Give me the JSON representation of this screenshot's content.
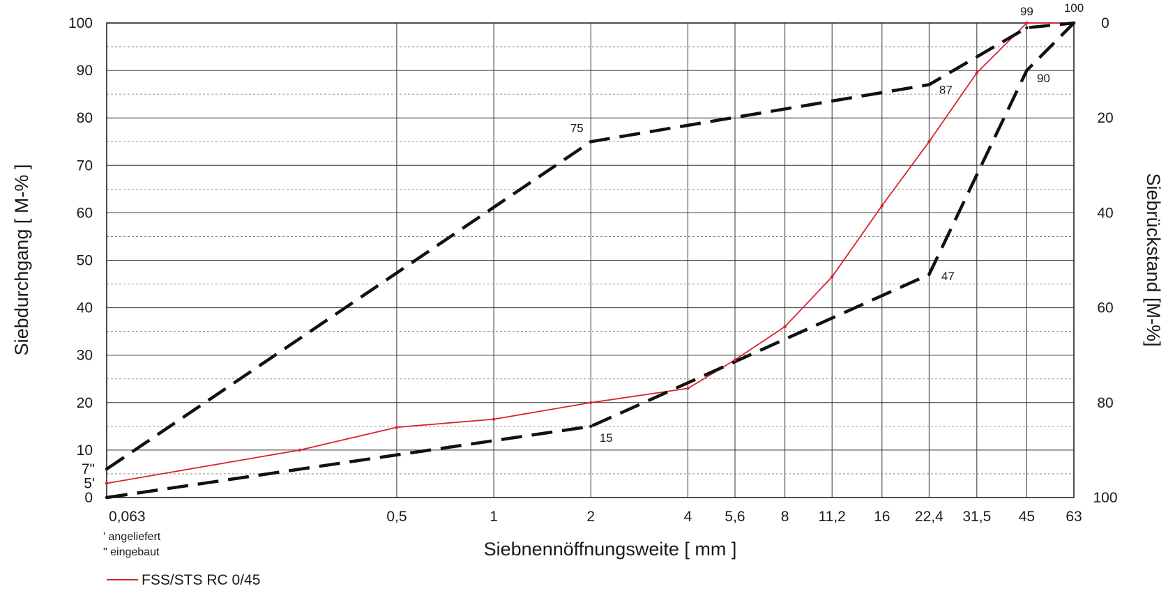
{
  "chart_data": {
    "type": "line",
    "ylabel": "Siebdurchgang [ M-% ]",
    "y2label": "Siebrückstand [M-%]",
    "xlabel": "Siebnennöffnungsweite [ mm ]",
    "x_scale": "log",
    "x_ticks": [
      "0,063",
      "0,5",
      "1",
      "2",
      "4",
      "5,6",
      "8",
      "11,2",
      "16",
      "22,4",
      "31,5",
      "45",
      "63"
    ],
    "y_ticks": [
      "0",
      "10",
      "20",
      "30",
      "40",
      "50",
      "60",
      "70",
      "80",
      "90",
      "100"
    ],
    "y2_ticks": [
      "0",
      "20",
      "40",
      "60",
      "80",
      "100"
    ],
    "ylim": [
      0,
      100
    ],
    "y2lim": [
      100,
      0
    ],
    "grid": true,
    "extra_y_labels": [
      {
        "text": "7\"",
        "y": 6
      },
      {
        "text": "5'",
        "y": 3
      }
    ],
    "notes": [
      "' angeliefert",
      "\" eingebaut"
    ],
    "series": [
      {
        "name": "FSS/STS RC 0/45",
        "color": "#d9232e",
        "style": "solid",
        "legend": true,
        "x": [
          0.063,
          0.25,
          0.5,
          1,
          2,
          4,
          5.6,
          8,
          11.2,
          16,
          22.4,
          31.5,
          45,
          63
        ],
        "y": [
          3,
          10,
          14.8,
          16.5,
          20,
          23,
          29,
          36,
          46.5,
          61.5,
          75,
          89.5,
          100,
          100
        ]
      },
      {
        "name": "",
        "color": "#111111",
        "style": "dashed",
        "legend": false,
        "x": [
          0.063,
          2,
          22.4,
          45,
          63
        ],
        "y": [
          6,
          75,
          87,
          99,
          100
        ]
      },
      {
        "name": "",
        "color": "#111111",
        "style": "dashed",
        "legend": false,
        "x": [
          0.063,
          2,
          22.4,
          45,
          63
        ],
        "y": [
          0,
          15,
          47,
          90,
          100
        ]
      }
    ],
    "annotations": [
      {
        "text": "75",
        "x": 2,
        "y": 75
      },
      {
        "text": "87",
        "x": 22.4,
        "y": 87
      },
      {
        "text": "99",
        "x": 45,
        "y": 99
      },
      {
        "text": "100",
        "x": 63,
        "y": 100
      },
      {
        "text": "15",
        "x": 2,
        "y": 15
      },
      {
        "text": "47",
        "x": 22.4,
        "y": 47
      },
      {
        "text": "90",
        "x": 45,
        "y": 90
      }
    ]
  }
}
